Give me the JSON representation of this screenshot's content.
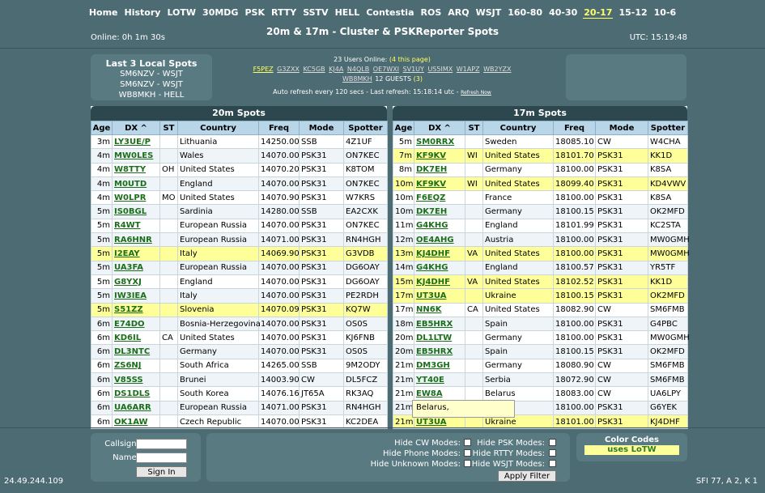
{
  "nav": [
    "Home",
    "History",
    "LOTW",
    "30MDG",
    "PSK",
    "RTTY",
    "SSTV",
    "HELL",
    "Contestia",
    "ROS",
    "ARQ",
    "WSJT",
    "160-80",
    "40-30",
    "20-17",
    "15-12",
    "10-6"
  ],
  "nav_active": "20-17",
  "header": {
    "online": "Online: 0h 1m 30s",
    "title": "20m & 17m - Cluster & PSKReporter Spots",
    "utc": "UTC: 15:19:48"
  },
  "local": {
    "title": "Last 3 Local Spots",
    "items": [
      "SM6NZV - WSJT",
      "SM6NZV - WSJT",
      "WB8MKH - HELL"
    ]
  },
  "users": {
    "count_text": "23 Users Online: ",
    "page_text": "(4 this page)",
    "callsigns": [
      "F5PEZ",
      "G3ZXX",
      "KC5GB",
      "KJ4A",
      "N4QLB",
      "OE7WXI",
      "SV1UY",
      "US5IMX",
      "W1APZ",
      "WB2YZX",
      "WB8MKH"
    ],
    "guests_text": "12 GUESTS",
    "guests_count": "(3)",
    "refresh_text": "Auto refresh every 120 secs - Last refresh: 15:18:14 utc - ",
    "refresh_link": "Refresh Now"
  },
  "columns": [
    "Age",
    "DX ^",
    "ST",
    "Country",
    "Freq",
    "Mode",
    "Spotter"
  ],
  "panel20": {
    "title": "20m Spots",
    "rows": [
      {
        "age": "3m",
        "dx": "LY3UE/P",
        "st": "",
        "country": "Lithuania",
        "freq": "14250.00",
        "mode": "SSB",
        "spotter": "4Z1UF",
        "lotw": false
      },
      {
        "age": "4m",
        "dx": "MW0LES",
        "st": "",
        "country": "Wales",
        "freq": "14070.00",
        "mode": "PSK31",
        "spotter": "ON7KEC",
        "lotw": false
      },
      {
        "age": "4m",
        "dx": "W8TTY",
        "st": "OH",
        "country": "United States",
        "freq": "14070.20",
        "mode": "PSK31",
        "spotter": "K8TOM",
        "lotw": false
      },
      {
        "age": "4m",
        "dx": "M0UTD",
        "st": "",
        "country": "England",
        "freq": "14070.00",
        "mode": "PSK31",
        "spotter": "ON7KEC",
        "lotw": false
      },
      {
        "age": "4m",
        "dx": "W0LPR",
        "st": "MO",
        "country": "United States",
        "freq": "14070.90",
        "mode": "PSK31",
        "spotter": "W7KRS",
        "lotw": false
      },
      {
        "age": "5m",
        "dx": "IS0BGL",
        "st": "",
        "country": "Sardinia",
        "freq": "14280.00",
        "mode": "SSB",
        "spotter": "EA2CXK",
        "lotw": false
      },
      {
        "age": "5m",
        "dx": "R4WT",
        "st": "",
        "country": "European Russia",
        "freq": "14070.00",
        "mode": "PSK31",
        "spotter": "ON7KEC",
        "lotw": false
      },
      {
        "age": "5m",
        "dx": "RA6HNR",
        "st": "",
        "country": "European Russia",
        "freq": "14071.00",
        "mode": "PSK31",
        "spotter": "RN4HGH",
        "lotw": false
      },
      {
        "age": "5m",
        "dx": "I2EAY",
        "st": "",
        "country": "Italy",
        "freq": "14069.90",
        "mode": "PSK31",
        "spotter": "G3VDB",
        "lotw": true
      },
      {
        "age": "5m",
        "dx": "UA3FA",
        "st": "",
        "country": "European Russia",
        "freq": "14070.00",
        "mode": "PSK31",
        "spotter": "DG6OAY",
        "lotw": false
      },
      {
        "age": "5m",
        "dx": "G8YXJ",
        "st": "",
        "country": "England",
        "freq": "14070.00",
        "mode": "PSK31",
        "spotter": "DG6OAY",
        "lotw": false
      },
      {
        "age": "5m",
        "dx": "IW3IEA",
        "st": "",
        "country": "Italy",
        "freq": "14070.00",
        "mode": "PSK31",
        "spotter": "PE2RDH",
        "lotw": false
      },
      {
        "age": "5m",
        "dx": "S51ZZ",
        "st": "",
        "country": "Slovenia",
        "freq": "14070.09",
        "mode": "PSK31",
        "spotter": "KQ7W",
        "lotw": true
      },
      {
        "age": "6m",
        "dx": "E74DO",
        "st": "",
        "country": "Bosnia-Herzegovina",
        "freq": "14070.00",
        "mode": "PSK31",
        "spotter": "OS0S",
        "lotw": false
      },
      {
        "age": "6m",
        "dx": "KD6IL",
        "st": "CA",
        "country": "United States",
        "freq": "14070.00",
        "mode": "PSK31",
        "spotter": "KJ6FNB",
        "lotw": false
      },
      {
        "age": "6m",
        "dx": "DL3NTC",
        "st": "",
        "country": "Germany",
        "freq": "14070.00",
        "mode": "PSK31",
        "spotter": "OS0S",
        "lotw": false
      },
      {
        "age": "6m",
        "dx": "ZS6NJ",
        "st": "",
        "country": "South Africa",
        "freq": "14265.00",
        "mode": "SSB",
        "spotter": "9M2ODY",
        "lotw": false
      },
      {
        "age": "6m",
        "dx": "V85SS",
        "st": "",
        "country": "Brunei",
        "freq": "14003.90",
        "mode": "CW",
        "spotter": "DL5FCZ",
        "lotw": false
      },
      {
        "age": "6m",
        "dx": "DS1DLS",
        "st": "",
        "country": "South Korea",
        "freq": "14076.16",
        "mode": "JT65A",
        "spotter": "RK3AQ",
        "lotw": false
      },
      {
        "age": "6m",
        "dx": "UA6ARR",
        "st": "",
        "country": "European Russia",
        "freq": "14071.00",
        "mode": "PSK31",
        "spotter": "RN4HGH",
        "lotw": false
      },
      {
        "age": "6m",
        "dx": "OK1AW",
        "st": "",
        "country": "Czech Republic",
        "freq": "14070.00",
        "mode": "PSK31",
        "spotter": "KC2DEA",
        "lotw": false
      }
    ]
  },
  "panel17": {
    "title": "17m Spots",
    "rows": [
      {
        "age": "5m",
        "dx": "SM0RRX",
        "st": "",
        "country": "Sweden",
        "freq": "18085.10",
        "mode": "CW",
        "spotter": "W4CHA",
        "lotw": false
      },
      {
        "age": "7m",
        "dx": "KF9KV",
        "st": "WI",
        "country": "United States",
        "freq": "18101.70",
        "mode": "PSK31",
        "spotter": "KK1D",
        "lotw": true
      },
      {
        "age": "8m",
        "dx": "DK7EH",
        "st": "",
        "country": "Germany",
        "freq": "18100.00",
        "mode": "PSK31",
        "spotter": "K8SA",
        "lotw": false
      },
      {
        "age": "10m",
        "dx": "KF9KV",
        "st": "WI",
        "country": "United States",
        "freq": "18099.40",
        "mode": "PSK31",
        "spotter": "KD4VWV",
        "lotw": true
      },
      {
        "age": "10m",
        "dx": "F6EQZ",
        "st": "",
        "country": "France",
        "freq": "18100.00",
        "mode": "PSK31",
        "spotter": "K8SA",
        "lotw": false
      },
      {
        "age": "10m",
        "dx": "DK7EH",
        "st": "",
        "country": "Germany",
        "freq": "18100.15",
        "mode": "PSK31",
        "spotter": "OK2MFD",
        "lotw": false
      },
      {
        "age": "11m",
        "dx": "G4KHG",
        "st": "",
        "country": "England",
        "freq": "18101.99",
        "mode": "PSK31",
        "spotter": "KC2STA",
        "lotw": false
      },
      {
        "age": "12m",
        "dx": "OE4AHG",
        "st": "",
        "country": "Austria",
        "freq": "18100.00",
        "mode": "PSK31",
        "spotter": "MW0GMH",
        "lotw": false
      },
      {
        "age": "13m",
        "dx": "KJ4DHF",
        "st": "VA",
        "country": "United States",
        "freq": "18100.00",
        "mode": "PSK31",
        "spotter": "MW0GMH",
        "lotw": true
      },
      {
        "age": "14m",
        "dx": "G4KHG",
        "st": "",
        "country": "England",
        "freq": "18100.57",
        "mode": "PSK31",
        "spotter": "YR5TF",
        "lotw": false
      },
      {
        "age": "15m",
        "dx": "KJ4DHF",
        "st": "VA",
        "country": "United States",
        "freq": "18102.52",
        "mode": "PSK31",
        "spotter": "KK1D",
        "lotw": true
      },
      {
        "age": "17m",
        "dx": "UT3UA",
        "st": "",
        "country": "Ukraine",
        "freq": "18100.15",
        "mode": "PSK31",
        "spotter": "OK2MFD",
        "lotw": true
      },
      {
        "age": "17m",
        "dx": "NN6K",
        "st": "CA",
        "country": "United States",
        "freq": "18082.90",
        "mode": "CW",
        "spotter": "SM6FMB",
        "lotw": false
      },
      {
        "age": "18m",
        "dx": "EB5HRX",
        "st": "",
        "country": "Spain",
        "freq": "18100.00",
        "mode": "PSK31",
        "spotter": "G4PBC",
        "lotw": false
      },
      {
        "age": "20m",
        "dx": "DL1LTW",
        "st": "",
        "country": "Germany",
        "freq": "18100.00",
        "mode": "PSK31",
        "spotter": "MW0GMH",
        "lotw": false
      },
      {
        "age": "20m",
        "dx": "EB5HRX",
        "st": "",
        "country": "Spain",
        "freq": "18100.15",
        "mode": "PSK31",
        "spotter": "OK2MFD",
        "lotw": false
      },
      {
        "age": "21m",
        "dx": "DM3GH",
        "st": "",
        "country": "Germany",
        "freq": "18080.90",
        "mode": "CW",
        "spotter": "SM6FMB",
        "lotw": false
      },
      {
        "age": "21m",
        "dx": "YT40E",
        "st": "",
        "country": "Serbia",
        "freq": "18072.90",
        "mode": "CW",
        "spotter": "SM6FMB",
        "lotw": false
      },
      {
        "age": "21m",
        "dx": "EW8A",
        "st": "",
        "country": "Belarus",
        "freq": "18083.00",
        "mode": "CW",
        "spotter": "UA6LPY",
        "lotw": false
      },
      {
        "age": "21m",
        "dx": "",
        "st": "",
        "country": "",
        "freq": "18100.00",
        "mode": "PSK31",
        "spotter": "G6YEK",
        "lotw": false
      },
      {
        "age": "21m",
        "dx": "UT3UA",
        "st": "",
        "country": "Ukraine",
        "freq": "18101.00",
        "mode": "PSK31",
        "spotter": "KJ4DHF",
        "lotw": true
      }
    ]
  },
  "tooltip": "Belarus,",
  "login": {
    "callsign_label": "Callsign:",
    "name_label": "Name:",
    "signin": "Sign In"
  },
  "filters": {
    "hide_cw": "Hide CW Modes:",
    "hide_psk": "Hide PSK Modes:",
    "hide_phone": "Hide Phone Modes:",
    "hide_rtty": "Hide RTTY Modes:",
    "hide_unknown": "Hide Unknown Modes:",
    "hide_wsjt": "Hide WSJT Modes:",
    "apply": "Apply Filter"
  },
  "color_codes": {
    "title": "Color Codes",
    "lotw": "uses LoTW"
  },
  "footer": {
    "ip": "24.49.244.109",
    "sfi": "SFI 77, A 2, K 1"
  }
}
